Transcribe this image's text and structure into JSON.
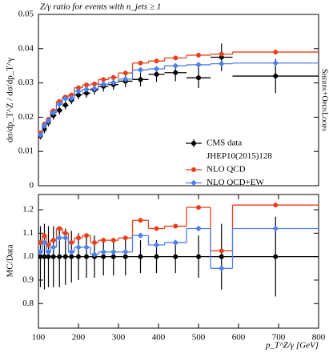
{
  "chart_data": [
    {
      "type": "histogram",
      "title": "Z/γ ratio for events with n_jets ≥ 1",
      "y_label": "dσ/dp_T^Z / dσ/dp_T^γ",
      "side_label": "Sherpa+OpenLoops",
      "bins": [
        100,
        110,
        120,
        130,
        145,
        160,
        175,
        190,
        210,
        230,
        250,
        275,
        300,
        335,
        375,
        415,
        470,
        530,
        585,
        800
      ],
      "xlim": [
        100,
        800
      ],
      "ylim": [
        0,
        0.05
      ],
      "yticks": [
        0,
        0.01,
        0.02,
        0.03,
        0.04,
        0.05
      ],
      "legend": "lower right",
      "series": [
        {
          "name": "CMS data",
          "reference": "JHEP10(2015)128",
          "color": "#000000",
          "marker": "circle",
          "drawstyle": "points",
          "values": [
            0.0145,
            0.0165,
            0.0185,
            0.0205,
            0.022,
            0.0235,
            0.025,
            0.0265,
            0.027,
            0.028,
            0.029,
            0.0295,
            0.0305,
            0.031,
            0.0325,
            0.033,
            0.0315,
            0.0375,
            0.032
          ],
          "errors": [
            0.001,
            0.0012,
            0.0012,
            0.0012,
            0.0012,
            0.0012,
            0.0012,
            0.0013,
            0.0013,
            0.0014,
            0.0015,
            0.0015,
            0.0017,
            0.002,
            0.0022,
            0.0025,
            0.003,
            0.004,
            0.005
          ]
        },
        {
          "name": "NLO QCD",
          "color": "#e8401c",
          "marker": "circle",
          "drawstyle": "steps",
          "values": [
            0.0154,
            0.018,
            0.0194,
            0.0219,
            0.0246,
            0.0259,
            0.0265,
            0.0286,
            0.0294,
            0.0297,
            0.031,
            0.0316,
            0.0329,
            0.0358,
            0.0364,
            0.0373,
            0.0381,
            0.0384,
            0.039
          ]
        },
        {
          "name": "NLO QCD+EW",
          "color": "#4f7fe8",
          "marker": "diamond",
          "drawstyle": "steps",
          "values": [
            0.0148,
            0.0175,
            0.0189,
            0.0213,
            0.0238,
            0.0254,
            0.0255,
            0.0276,
            0.0281,
            0.0283,
            0.0296,
            0.0301,
            0.0311,
            0.0338,
            0.0341,
            0.035,
            0.0353,
            0.0356,
            0.0358
          ]
        }
      ]
    },
    {
      "type": "histogram",
      "y_label": "MC/Data",
      "x_label": "p_T^Z/γ [GeV]",
      "bins": [
        100,
        110,
        120,
        130,
        145,
        160,
        175,
        190,
        210,
        230,
        250,
        275,
        300,
        335,
        375,
        415,
        470,
        530,
        585,
        800
      ],
      "xlim": [
        100,
        800
      ],
      "xticks": [
        100,
        200,
        300,
        400,
        500,
        600,
        700,
        800
      ],
      "ylim": [
        0.695,
        1.265
      ],
      "yticks": [
        0.8,
        0.9,
        {
          "value": 1,
          "label": "1.0"
        },
        1.1,
        1.2
      ],
      "series": [
        {
          "color": "#000000",
          "marker": "circle",
          "drawstyle": "steps",
          "values": [
            1,
            1,
            1,
            1,
            1,
            1,
            1,
            1,
            1,
            1,
            1,
            1,
            1,
            1,
            1,
            1,
            1,
            1,
            1
          ],
          "errors": [
            0.13,
            0.14,
            0.13,
            0.13,
            0.13,
            0.12,
            0.11,
            0.1,
            0.09,
            0.09,
            0.08,
            0.08,
            0.08,
            0.07,
            0.07,
            0.07,
            0.09,
            0.14,
            0.17
          ]
        },
        {
          "color": "#e8401c",
          "marker": "circle",
          "drawstyle": "steps",
          "values": [
            1.06,
            1.09,
            1.05,
            1.07,
            1.12,
            1.1,
            1.06,
            1.08,
            1.09,
            1.06,
            1.07,
            1.07,
            1.08,
            1.155,
            1.12,
            1.13,
            1.21,
            1.025,
            1.22
          ]
        },
        {
          "color": "#4f7fe8",
          "marker": "diamond",
          "drawstyle": "steps",
          "values": [
            1.02,
            1.06,
            1.02,
            1.04,
            1.08,
            1.08,
            1.02,
            1.04,
            1.04,
            1.01,
            1.02,
            1.02,
            1.02,
            1.09,
            1.05,
            1.06,
            1.12,
            0.95,
            1.12
          ]
        }
      ]
    }
  ]
}
